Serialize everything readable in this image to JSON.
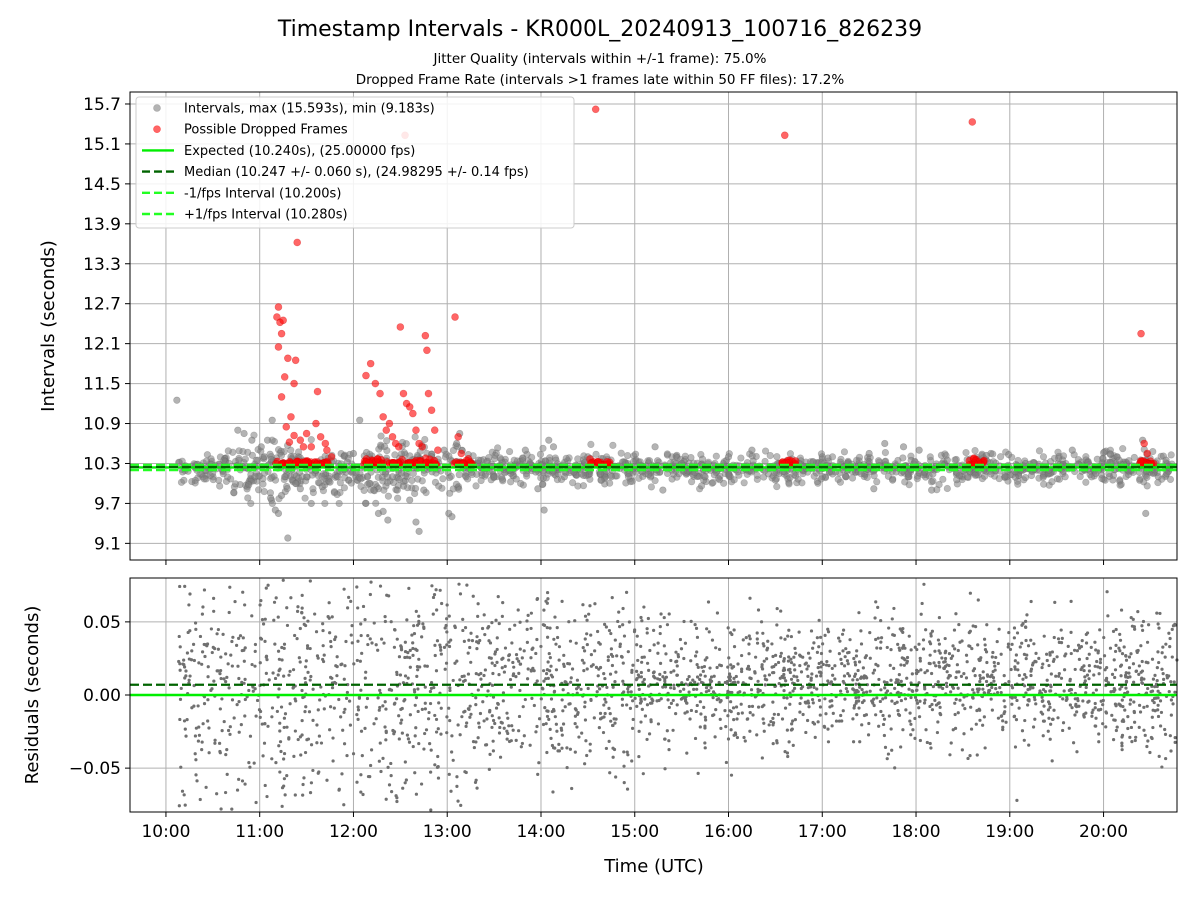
{
  "figure": {
    "title": "Timestamp Intervals - KR000L_20240913_100716_826239",
    "subtitle_1": "Jitter Quality (intervals within +/-1 frame): 75.0%",
    "subtitle_2": "Dropped Frame Rate (intervals >1 frames late within 50 FF files): 17.2%",
    "xlabel": "Time (UTC)"
  },
  "colors": {
    "intervals": "#808080",
    "dropped": "#ff0000",
    "expected": "#00ee00",
    "median": "#006400",
    "bound": "#22ff22",
    "grid": "#b0b0b0"
  },
  "chart_data": [
    {
      "type": "scatter",
      "ylabel": "Intervals (seconds)",
      "xlim": [
        "09:37",
        "20:47"
      ],
      "ylim": [
        8.85,
        15.88
      ],
      "x_ticks": [
        "10:00",
        "11:00",
        "12:00",
        "13:00",
        "14:00",
        "15:00",
        "16:00",
        "17:00",
        "18:00",
        "19:00",
        "20:00"
      ],
      "y_ticks": [
        "9.1",
        "9.7",
        "10.3",
        "10.9",
        "11.5",
        "12.1",
        "12.7",
        "13.3",
        "13.9",
        "14.5",
        "15.1",
        "15.7"
      ],
      "grid": true,
      "legend_position": "top-left",
      "legend": [
        {
          "label": "Intervals, max (15.593s), min (9.183s)",
          "kind": "marker",
          "color": "#808080"
        },
        {
          "label": "Possible Dropped Frames",
          "kind": "marker",
          "color": "#ff0000"
        },
        {
          "label": "Expected (10.240s), (25.00000 fps)",
          "kind": "solid",
          "color": "#00ee00"
        },
        {
          "label": "Median (10.247 +/- 0.060 s), (24.98295 +/- 0.14 fps)",
          "kind": "dashed",
          "color": "#006400"
        },
        {
          "label": "-1/fps Interval (10.200s)",
          "kind": "dashed",
          "color": "#22ff22"
        },
        {
          "label": "+1/fps Interval (10.280s)",
          "kind": "dashed",
          "color": "#22ff22"
        }
      ],
      "reference_lines": {
        "expected": 10.24,
        "median": 10.247,
        "minus_1_fps": 10.2,
        "plus_1_fps": 10.28
      },
      "series": [
        {
          "name": "Intervals, max (15.593s), min (9.183s)",
          "points": [
            [
              "10:07",
              11.25
            ],
            [
              "10:46",
              10.8
            ],
            [
              "10:50",
              10.75
            ],
            [
              "10:53",
              9.98
            ],
            [
              "10:55",
              10.65
            ],
            [
              "10:57",
              10.1
            ],
            [
              "11:01",
              10.55
            ],
            [
              "11:03",
              10.4
            ],
            [
              "11:05",
              10.65
            ],
            [
              "11:07",
              9.78
            ],
            [
              "11:08",
              10.95
            ],
            [
              "11:10",
              9.6
            ],
            [
              "11:12",
              9.55
            ],
            [
              "11:14",
              9.82
            ],
            [
              "11:16",
              10.1
            ],
            [
              "11:18",
              9.18
            ],
            [
              "11:20",
              10.4
            ],
            [
              "11:23",
              10.0
            ],
            [
              "11:26",
              9.92
            ],
            [
              "11:30",
              10.1
            ],
            [
              "11:33",
              9.7
            ],
            [
              "11:36",
              10.2
            ],
            [
              "11:40",
              9.95
            ],
            [
              "11:45",
              10.02
            ],
            [
              "11:50",
              10.1
            ],
            [
              "11:56",
              10.32
            ],
            [
              "12:00",
              10.45
            ],
            [
              "12:04",
              10.95
            ],
            [
              "12:08",
              9.7
            ],
            [
              "12:10",
              10.0
            ],
            [
              "12:13",
              9.9
            ],
            [
              "12:16",
              9.55
            ],
            [
              "12:19",
              9.58
            ],
            [
              "12:22",
              9.45
            ],
            [
              "12:25",
              10.1
            ],
            [
              "12:28",
              9.9
            ],
            [
              "12:32",
              9.96
            ],
            [
              "12:36",
              9.75
            ],
            [
              "12:40",
              9.42
            ],
            [
              "12:42",
              9.28
            ],
            [
              "12:45",
              9.9
            ],
            [
              "12:50",
              10.4
            ],
            [
              "12:58",
              10.5
            ],
            [
              "13:01",
              9.55
            ],
            [
              "13:03",
              9.5
            ],
            [
              "13:06",
              10.6
            ],
            [
              "13:08",
              10.75
            ],
            [
              "13:12",
              10.1
            ],
            [
              "13:20",
              10.35
            ],
            [
              "13:30",
              10.1
            ],
            [
              "13:40",
              10.2
            ],
            [
              "13:50",
              10.5
            ],
            [
              "13:58",
              9.92
            ],
            [
              "14:02",
              9.6
            ],
            [
              "14:05",
              10.65
            ],
            [
              "14:08",
              10.55
            ],
            [
              "14:15",
              10.1
            ],
            [
              "14:30",
              10.4
            ],
            [
              "14:45",
              10.1
            ],
            [
              "15:00",
              10.25
            ],
            [
              "15:13",
              10.55
            ],
            [
              "15:18",
              9.9
            ],
            [
              "15:30",
              10.3
            ],
            [
              "15:45",
              10.1
            ],
            [
              "16:00",
              10.4
            ],
            [
              "16:15",
              10.5
            ],
            [
              "16:30",
              10.05
            ],
            [
              "16:45",
              10.3
            ],
            [
              "17:00",
              10.4
            ],
            [
              "17:15",
              10.1
            ],
            [
              "17:30",
              10.45
            ],
            [
              "17:33",
              9.92
            ],
            [
              "17:40",
              10.6
            ],
            [
              "17:45",
              10.05
            ],
            [
              "17:52",
              10.55
            ],
            [
              "18:02",
              10.5
            ],
            [
              "18:10",
              9.9
            ],
            [
              "18:20",
              10.35
            ],
            [
              "18:33",
              10.1
            ],
            [
              "18:45",
              10.42
            ],
            [
              "18:57",
              10.1
            ],
            [
              "19:10",
              10.3
            ],
            [
              "19:25",
              10.2
            ],
            [
              "19:40",
              10.5
            ],
            [
              "19:55",
              10.15
            ],
            [
              "20:10",
              10.35
            ],
            [
              "20:25",
              10.65
            ],
            [
              "20:27",
              9.55
            ],
            [
              "20:35",
              10.1
            ],
            [
              "20:40",
              10.35
            ]
          ]
        },
        {
          "name": "Possible Dropped Frames",
          "points": [
            [
              "11:12",
              12.65
            ],
            [
              "11:11",
              12.5
            ],
            [
              "11:13",
              12.42
            ],
            [
              "11:15",
              12.45
            ],
            [
              "11:14",
              12.25
            ],
            [
              "11:12",
              12.05
            ],
            [
              "11:18",
              11.88
            ],
            [
              "11:23",
              11.85
            ],
            [
              "11:16",
              11.6
            ],
            [
              "11:22",
              11.5
            ],
            [
              "11:14",
              11.3
            ],
            [
              "11:20",
              11.0
            ],
            [
              "11:17",
              10.85
            ],
            [
              "11:19",
              10.62
            ],
            [
              "11:22",
              10.72
            ],
            [
              "11:26",
              10.65
            ],
            [
              "11:28",
              10.55
            ],
            [
              "11:24",
              13.62
            ],
            [
              "11:30",
              10.75
            ],
            [
              "11:33",
              10.55
            ],
            [
              "11:36",
              10.9
            ],
            [
              "11:39",
              10.7
            ],
            [
              "11:42",
              10.6
            ],
            [
              "11:37",
              11.38
            ],
            [
              "11:43",
              10.5
            ],
            [
              "11:46",
              10.4
            ],
            [
              "12:08",
              11.62
            ],
            [
              "12:11",
              11.8
            ],
            [
              "12:14",
              11.5
            ],
            [
              "12:17",
              11.35
            ],
            [
              "12:19",
              11.0
            ],
            [
              "12:21",
              10.8
            ],
            [
              "12:23",
              10.9
            ],
            [
              "12:25",
              10.7
            ],
            [
              "12:27",
              10.6
            ],
            [
              "12:29",
              10.55
            ],
            [
              "12:30",
              12.35
            ],
            [
              "12:32",
              11.35
            ],
            [
              "12:34",
              11.2
            ],
            [
              "12:36",
              11.15
            ],
            [
              "12:38",
              11.05
            ],
            [
              "12:40",
              10.8
            ],
            [
              "12:42",
              10.6
            ],
            [
              "12:44",
              10.55
            ],
            [
              "12:46",
              12.22
            ],
            [
              "12:47",
              12.0
            ],
            [
              "12:48",
              11.35
            ],
            [
              "12:50",
              11.1
            ],
            [
              "12:52",
              10.8
            ],
            [
              "12:54",
              10.5
            ],
            [
              "12:33",
              15.23
            ],
            [
              "13:05",
              12.5
            ],
            [
              "13:07",
              10.7
            ],
            [
              "13:09",
              10.45
            ],
            [
              "14:35",
              15.62
            ],
            [
              "16:36",
              15.23
            ],
            [
              "18:36",
              15.43
            ],
            [
              "18:37",
              10.38
            ],
            [
              "20:24",
              12.25
            ],
            [
              "20:26",
              10.6
            ],
            [
              "20:28",
              10.45
            ]
          ],
          "clusters": [
            [
              "11:10",
              "11:33"
            ],
            [
              "11:35",
              "11:44"
            ],
            [
              "12:06",
              "12:53"
            ],
            [
              "13:04",
              "13:16"
            ],
            [
              "14:31",
              "14:44"
            ],
            [
              "16:33",
              "16:43"
            ],
            [
              "18:34",
              "18:44"
            ],
            [
              "20:23",
              "20:33"
            ]
          ]
        }
      ]
    },
    {
      "type": "scatter",
      "ylabel": "Residuals (seconds)",
      "xlabel": "Time (UTC)",
      "xlim": [
        "09:37",
        "20:47"
      ],
      "ylim": [
        -0.08,
        0.08
      ],
      "y_ticks": [
        "0.05",
        "0.00",
        "−0.05"
      ],
      "x_ticks": [
        "10:00",
        "11:00",
        "12:00",
        "13:00",
        "14:00",
        "15:00",
        "16:00",
        "17:00",
        "18:00",
        "19:00",
        "20:00"
      ],
      "grid": true,
      "reference_lines": {
        "zero": 0.0,
        "median_offset": 0.007
      },
      "series": [
        {
          "name": "Residuals",
          "x_range": [
            "10:08",
            "20:47"
          ],
          "noise_envelope": [
            {
              "from": "10:08",
              "to": "13:10",
              "mean": 0.005,
              "spread": 0.045
            },
            {
              "from": "13:10",
              "to": "15:00",
              "mean": 0.008,
              "spread": 0.032
            },
            {
              "from": "15:00",
              "to": "20:47",
              "mean": 0.008,
              "spread": 0.022
            }
          ]
        }
      ]
    }
  ]
}
